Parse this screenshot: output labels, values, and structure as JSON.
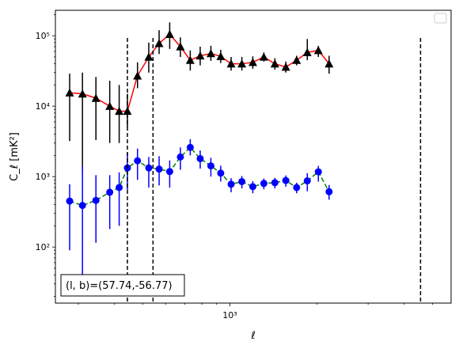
{
  "chart_data": {
    "type": "scatter",
    "title": "",
    "xlabel": "ℓ",
    "ylabel": "C_ℓ [mK²]",
    "xscale": "log",
    "yscale": "log",
    "xlim": [
      250,
      5800
    ],
    "ylim": [
      16,
      230000
    ],
    "x_tick_labels": [
      {
        "value": 1000,
        "label": "10³"
      }
    ],
    "y_tick_labels": [
      {
        "value": 100,
        "label": "10²"
      },
      {
        "value": 1000,
        "label": "10³"
      },
      {
        "value": 10000,
        "label": "10⁴"
      },
      {
        "value": 100000,
        "label": "10⁵"
      }
    ],
    "legend": {
      "placement": "top-right",
      "entries": []
    },
    "vlines": [
      443,
      543,
      4550
    ],
    "series": [
      {
        "marker": "triangle",
        "marker_color": "#000000",
        "line_color": "#ff0000",
        "line_style": "solid",
        "errorbar_color": "#000000",
        "x": [
          280,
          310,
          345,
          385,
          415,
          443,
          480,
          525,
          570,
          620,
          675,
          730,
          790,
          860,
          930,
          1010,
          1100,
          1200,
          1310,
          1430,
          1560,
          1700,
          1850,
          2020,
          2200,
          2400,
          2600,
          2850,
          3100,
          3400,
          3700,
          4000,
          4350,
          4700,
          5100
        ],
        "y": [
          15500,
          15000,
          13000,
          10000,
          8500,
          8500,
          27000,
          50000,
          78000,
          105000,
          70000,
          45000,
          52000,
          56000,
          51000,
          40000,
          40000,
          42000,
          50000,
          40000,
          36000,
          45000,
          58000,
          62000,
          40000,
          null,
          null,
          null,
          null,
          null,
          null,
          null,
          null,
          null,
          null
        ],
        "yerr_low": [
          3200,
          1100,
          3300,
          3000,
          3000,
          5000,
          18000,
          30000,
          55000,
          65000,
          50000,
          32000,
          38000,
          44000,
          41000,
          32000,
          32000,
          34000,
          43000,
          33000,
          30000,
          38000,
          45000,
          50000,
          29000,
          null,
          null,
          null,
          null,
          null,
          null,
          null,
          null,
          null,
          null
        ],
        "yerr_high": [
          29000,
          30000,
          26000,
          23000,
          20000,
          15000,
          42000,
          80000,
          120000,
          155000,
          95000,
          62000,
          70000,
          72000,
          63000,
          50000,
          50000,
          51000,
          58000,
          48000,
          43000,
          52000,
          90000,
          72000,
          52000,
          null,
          null,
          null,
          null,
          null,
          null,
          null,
          null,
          null,
          null
        ]
      },
      {
        "marker": "circle",
        "marker_color": "#0000ff",
        "line_color": "#008000",
        "line_style": "dashed",
        "errorbar_color": "#0000ff",
        "x": [
          280,
          310,
          345,
          385,
          415,
          443,
          480,
          525,
          570,
          620,
          675,
          730,
          790,
          860,
          930,
          1010,
          1100,
          1200,
          1310,
          1430,
          1560,
          1700,
          1850,
          2020,
          2200,
          2400,
          2600,
          2850,
          3100,
          3400,
          3700,
          4000,
          4350,
          4700,
          5100
        ],
        "y": [
          450,
          390,
          460,
          600,
          700,
          1330,
          1680,
          1330,
          1280,
          1180,
          1900,
          2600,
          1800,
          1420,
          1120,
          780,
          850,
          720,
          800,
          820,
          880,
          700,
          870,
          1170,
          610,
          null,
          null,
          null,
          null,
          null,
          null,
          null,
          null,
          null,
          null
        ],
        "yerr_low": [
          90,
          20,
          115,
          180,
          200,
          650,
          900,
          700,
          750,
          700,
          1250,
          2000,
          1300,
          1000,
          850,
          600,
          680,
          580,
          660,
          680,
          720,
          580,
          620,
          850,
          470,
          null,
          null,
          null,
          null,
          null,
          null,
          null,
          null,
          null,
          null
        ],
        "yerr_high": [
          780,
          1400,
          1050,
          1050,
          1150,
          2200,
          2500,
          1900,
          1950,
          1700,
          2600,
          3400,
          2350,
          1850,
          1430,
          950,
          1020,
          860,
          940,
          960,
          1040,
          820,
          1120,
          1420,
          760,
          null,
          null,
          null,
          null,
          null,
          null,
          null,
          null,
          null,
          null
        ]
      }
    ],
    "annotation": {
      "text": "(l, b)=(57.74,-56.77)",
      "placement": "bottom-left"
    }
  }
}
